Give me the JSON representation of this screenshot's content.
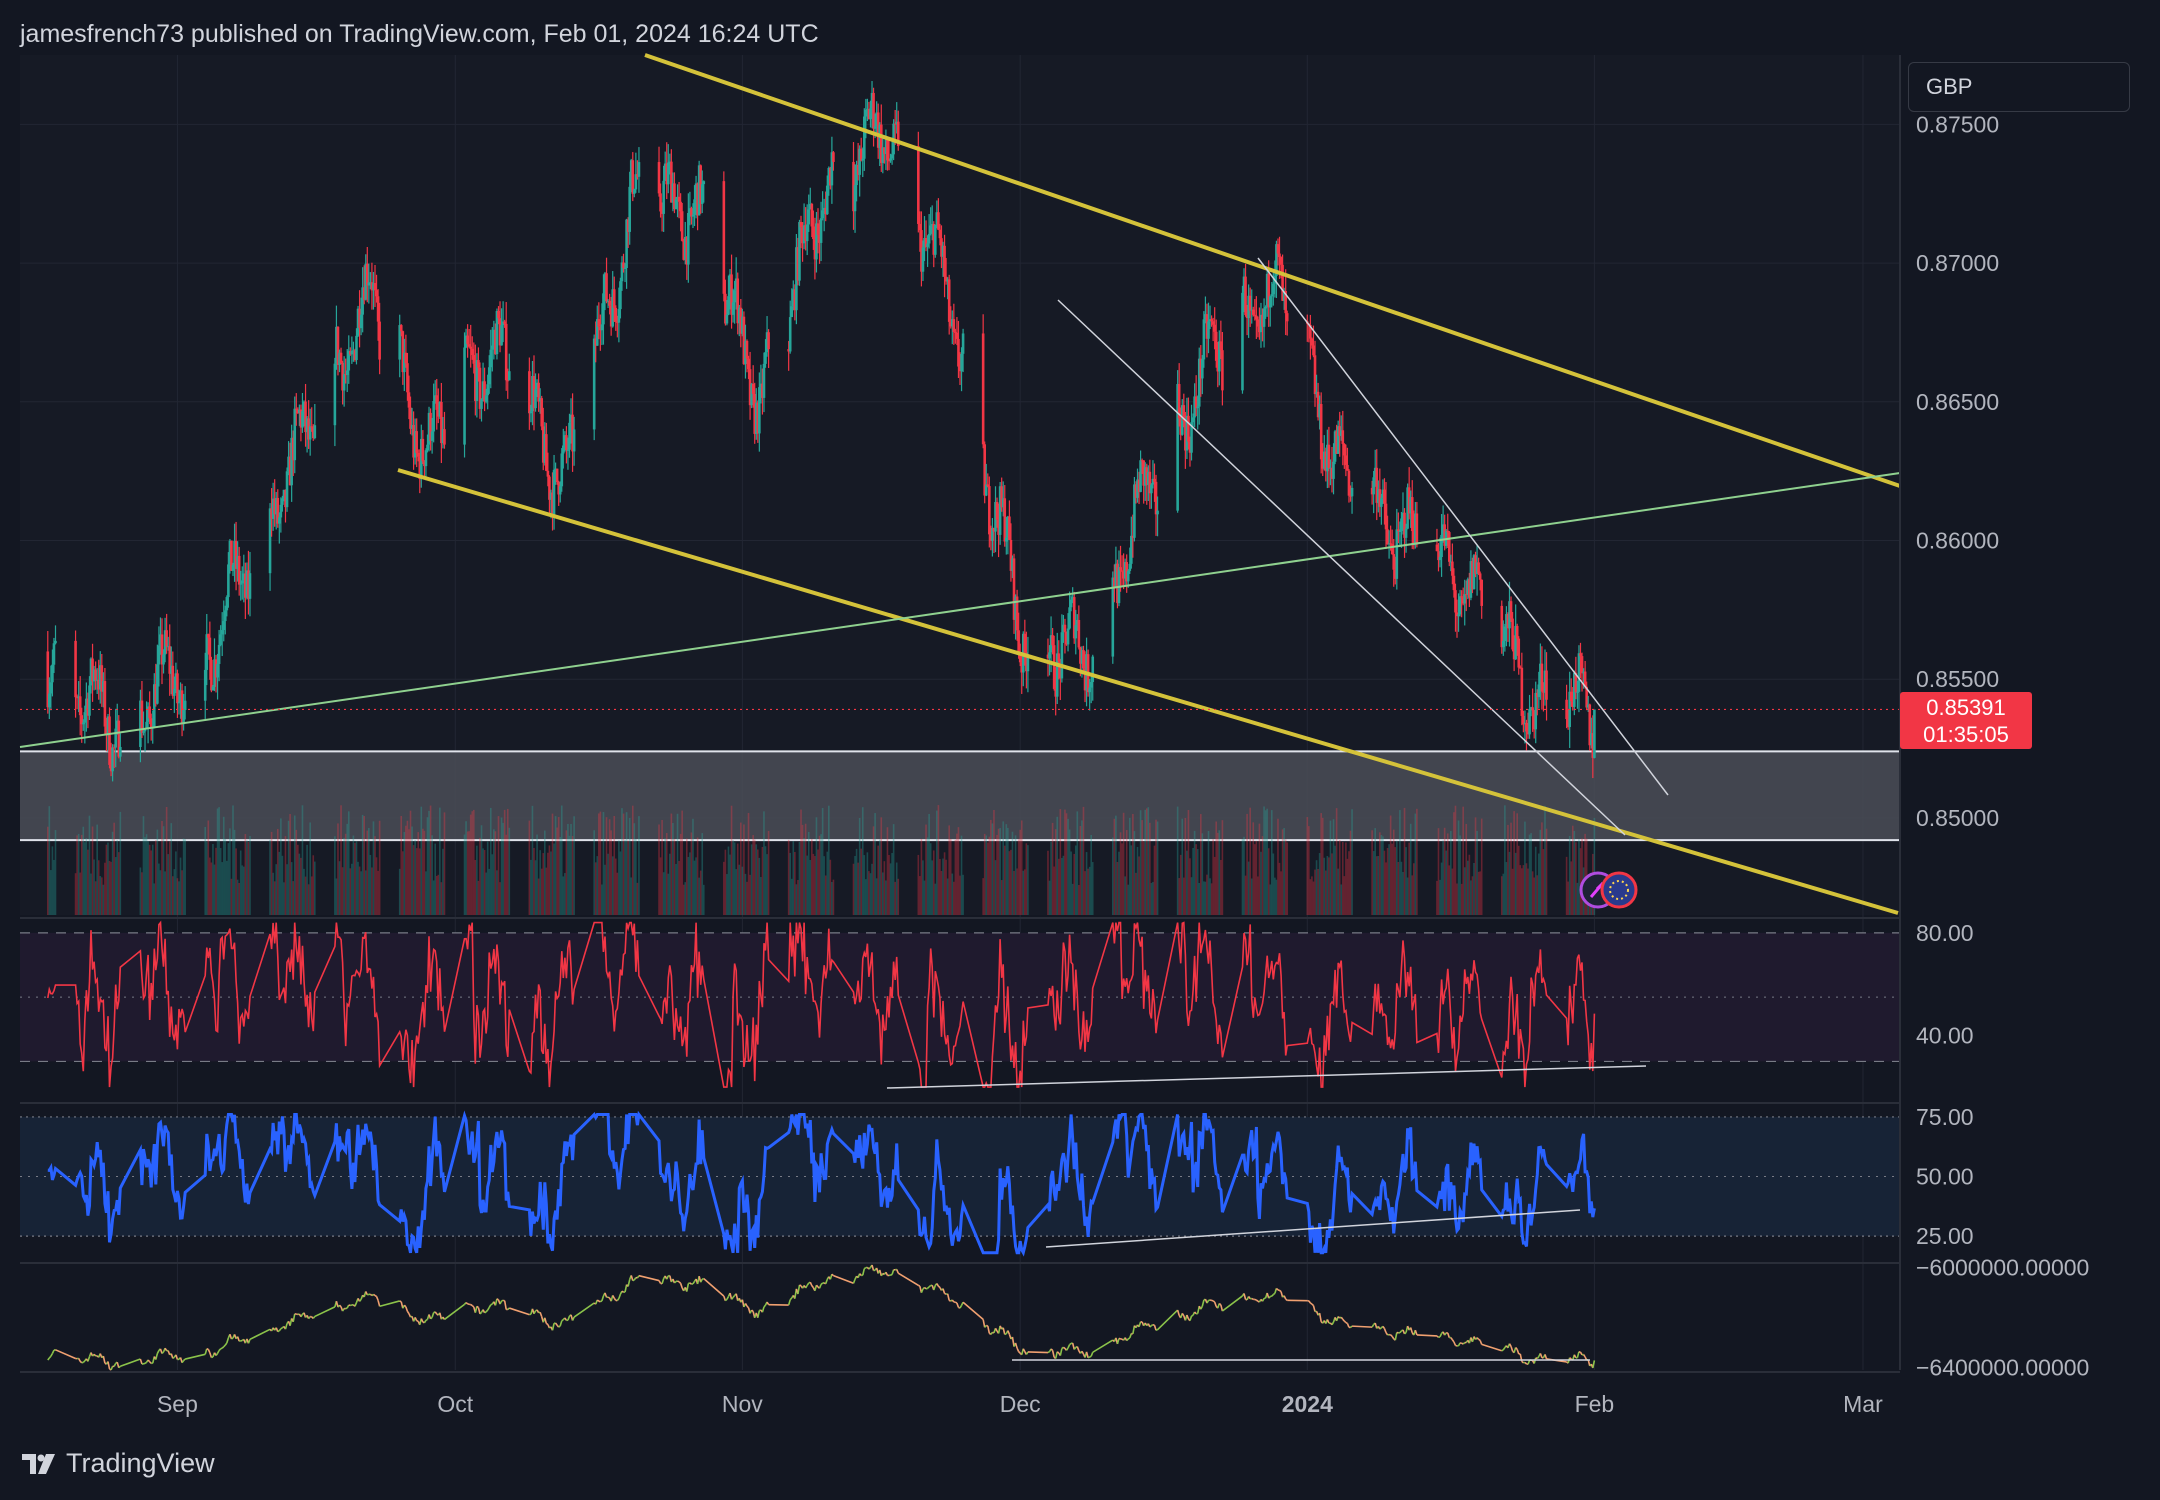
{
  "header": {
    "publish_line": "jamesfrench73 published on TradingView.com, Feb 01, 2024 16:24 UTC"
  },
  "currency_selector": {
    "value": "GBP"
  },
  "last_price": {
    "price": "0.85391",
    "countdown": "01:35:05"
  },
  "footer": {
    "brand": "TradingView"
  },
  "colors": {
    "background": "#131722",
    "up_candle": "#26a69a",
    "down_candle": "#f23645",
    "channel_line": "#d4c23a",
    "trend_green": "#8fd18f",
    "rsi_line": "#f23645",
    "oscillator_line": "#2962ff",
    "obv_up": "#8bc34a",
    "obv_down": "#f0a070"
  },
  "chart_data": [
    {
      "type": "candlestick",
      "instrument_axis_label": "GBP",
      "y_ticks": [
        "0.87500",
        "0.87000",
        "0.86500",
        "0.86000",
        "0.85500",
        "0.85000"
      ],
      "ylim": [
        0.8465,
        0.8775
      ],
      "x_ticks": [
        "Sep",
        "Oct",
        "Nov",
        "Dec",
        "2024",
        "Feb",
        "Mar"
      ],
      "last_price": 0.85391,
      "key_points": [
        {
          "date": "2023-08-18",
          "close": 0.856
        },
        {
          "date": "2023-08-25",
          "close": 0.8535
        },
        {
          "date": "2023-09-04",
          "close": 0.856
        },
        {
          "date": "2023-09-22",
          "close": 0.869
        },
        {
          "date": "2023-09-28",
          "close": 0.863
        },
        {
          "date": "2023-10-05",
          "close": 0.867
        },
        {
          "date": "2023-10-13",
          "close": 0.862
        },
        {
          "date": "2023-10-20",
          "close": 0.872
        },
        {
          "date": "2023-10-27",
          "close": 0.872
        },
        {
          "date": "2023-11-03",
          "close": 0.865
        },
        {
          "date": "2023-11-10",
          "close": 0.873
        },
        {
          "date": "2023-11-17",
          "close": 0.875
        },
        {
          "date": "2023-11-24",
          "close": 0.868
        },
        {
          "date": "2023-12-01",
          "close": 0.857
        },
        {
          "date": "2023-12-08",
          "close": 0.856
        },
        {
          "date": "2023-12-15",
          "close": 0.862
        },
        {
          "date": "2023-12-22",
          "close": 0.867
        },
        {
          "date": "2023-12-29",
          "close": 0.869
        },
        {
          "date": "2024-01-05",
          "close": 0.862
        },
        {
          "date": "2024-01-12",
          "close": 0.86
        },
        {
          "date": "2024-01-19",
          "close": 0.858
        },
        {
          "date": "2024-01-26",
          "close": 0.854
        },
        {
          "date": "2024-02-01",
          "close": 0.8539
        }
      ],
      "support_zone": [
        0.8492,
        0.8524
      ]
    },
    {
      "type": "line",
      "indicator": "rsi",
      "y_ticks": [
        "80.00",
        "40.00"
      ],
      "ylim": [
        15,
        85
      ],
      "band": [
        30,
        80
      ]
    },
    {
      "type": "line",
      "indicator": "oscillator",
      "y_ticks": [
        "75.00",
        "50.00",
        "25.00"
      ],
      "ylim": [
        15,
        80
      ],
      "band": [
        25,
        75
      ]
    },
    {
      "type": "line",
      "indicator": "obv",
      "y_ticks": [
        "−6000000.00000",
        "−6400000.00000"
      ],
      "ylim": [
        -6410000,
        -5990000
      ]
    }
  ]
}
